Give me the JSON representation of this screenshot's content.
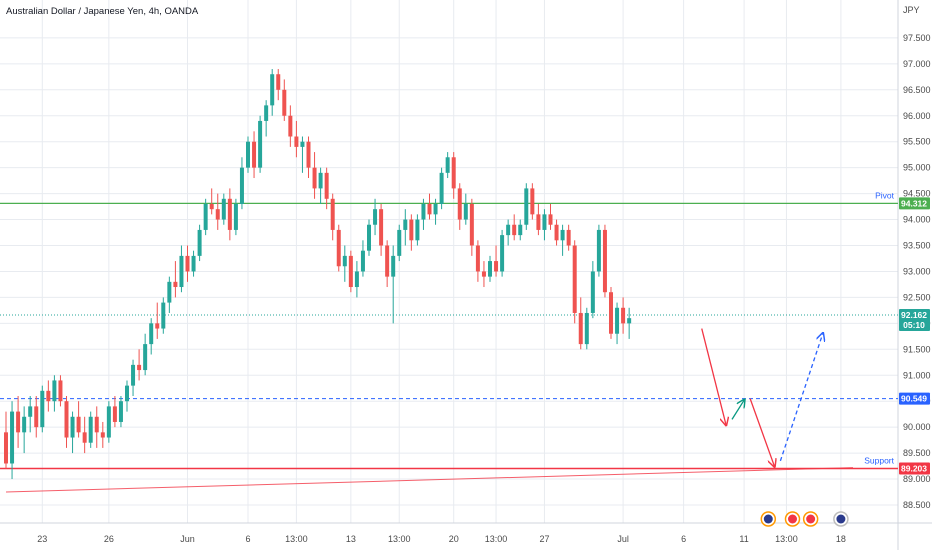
{
  "chart_data": {
    "type": "candlestick",
    "title": "Australian Dollar / Japanese Yen, 4h, OANDA",
    "currency": "JPY",
    "colors": {
      "up": "#26a69a",
      "down": "#ef5350",
      "pivot": "#4caf50",
      "support": "#f23645",
      "level": "#2962ff",
      "arrow_down": "#f23645",
      "arrow_up": "#089981",
      "grid": "#e8ebf0",
      "axis_text": "#4a4a4a"
    },
    "ylim": [
      88.2,
      98.2
    ],
    "y_ticks": [
      88.5,
      89.0,
      89.5,
      90.0,
      90.5,
      91.0,
      91.5,
      92.0,
      92.5,
      93.0,
      93.5,
      94.0,
      94.5,
      95.0,
      95.5,
      96.0,
      96.5,
      97.0,
      97.5
    ],
    "y_tick_labels": [
      "88.500",
      "89.000",
      "89.500",
      "90.000",
      "90.500",
      "91.000",
      "91.500",
      "92.000",
      "92.500",
      "93.000",
      "93.500",
      "94.000",
      "94.500",
      "95.000",
      "95.500",
      "96.000",
      "96.500",
      "97.000",
      "97.500"
    ],
    "x_ticks": [
      {
        "label": "23",
        "i": 6
      },
      {
        "label": "26",
        "i": 17
      },
      {
        "label": "Jun",
        "i": 30
      },
      {
        "label": "6",
        "i": 40
      },
      {
        "label": "13:00",
        "i": 48
      },
      {
        "label": "13",
        "i": 57
      },
      {
        "label": "13:00",
        "i": 65
      },
      {
        "label": "20",
        "i": 74
      },
      {
        "label": "13:00",
        "i": 81
      },
      {
        "label": "27",
        "i": 89
      },
      {
        "label": "Jul",
        "i": 102
      },
      {
        "label": "6",
        "i": 112
      },
      {
        "label": "11",
        "i": 122
      },
      {
        "label": "13:00",
        "i": 129
      },
      {
        "label": "18",
        "i": 138
      }
    ],
    "levels": {
      "pivot": {
        "label": "Pivot",
        "value": 94.312,
        "text": "94.312"
      },
      "support": {
        "label": "Support",
        "value": 89.203,
        "text": "89.203"
      },
      "target": {
        "value": 90.549,
        "text": "90.549"
      },
      "current": {
        "value": 92.162,
        "text": "92.162",
        "countdown": "05:10"
      }
    },
    "trendline": {
      "from": {
        "i": 0,
        "v": 88.75
      },
      "to": {
        "i": 140,
        "v": 89.22
      }
    },
    "projection": [
      {
        "from": {
          "i": 115,
          "v": 91.9
        },
        "to": {
          "i": 119,
          "v": 90.05
        },
        "style": "arrow_down"
      },
      {
        "from": {
          "i": 120,
          "v": 90.15
        },
        "to": {
          "i": 122,
          "v": 90.52
        },
        "style": "arrow_up"
      },
      {
        "from": {
          "i": 123,
          "v": 90.55
        },
        "to": {
          "i": 127,
          "v": 89.25
        },
        "style": "arrow_down"
      },
      {
        "from": {
          "i": 128,
          "v": 89.35
        },
        "to": {
          "i": 135,
          "v": 91.8
        },
        "style": "arrow_dashed"
      }
    ],
    "candles": [
      [
        89.9,
        90.3,
        89.2,
        89.3
      ],
      [
        89.3,
        90.5,
        89.0,
        90.3
      ],
      [
        90.3,
        90.6,
        89.6,
        89.9
      ],
      [
        89.9,
        90.4,
        89.5,
        90.2
      ],
      [
        90.2,
        90.6,
        89.9,
        90.4
      ],
      [
        90.4,
        90.6,
        89.8,
        90.0
      ],
      [
        90.0,
        90.8,
        89.9,
        90.7
      ],
      [
        90.7,
        90.9,
        90.3,
        90.5
      ],
      [
        90.5,
        91.0,
        90.3,
        90.9
      ],
      [
        90.9,
        91.0,
        90.4,
        90.5
      ],
      [
        90.5,
        90.6,
        89.6,
        89.8
      ],
      [
        89.8,
        90.3,
        89.5,
        90.2
      ],
      [
        90.2,
        90.5,
        89.8,
        89.9
      ],
      [
        89.9,
        90.2,
        89.5,
        89.7
      ],
      [
        89.7,
        90.3,
        89.6,
        90.2
      ],
      [
        90.2,
        90.4,
        89.6,
        89.9
      ],
      [
        89.9,
        90.1,
        89.6,
        89.8
      ],
      [
        89.8,
        90.5,
        89.7,
        90.4
      ],
      [
        90.4,
        90.6,
        90.0,
        90.1
      ],
      [
        90.1,
        90.6,
        90.0,
        90.5
      ],
      [
        90.5,
        90.9,
        90.3,
        90.8
      ],
      [
        90.8,
        91.3,
        90.6,
        91.2
      ],
      [
        91.2,
        91.5,
        90.9,
        91.1
      ],
      [
        91.1,
        91.8,
        91.0,
        91.6
      ],
      [
        91.6,
        92.1,
        91.4,
        92.0
      ],
      [
        92.0,
        92.4,
        91.7,
        91.9
      ],
      [
        91.9,
        92.5,
        91.8,
        92.4
      ],
      [
        92.4,
        92.9,
        92.2,
        92.8
      ],
      [
        92.8,
        93.2,
        92.5,
        92.7
      ],
      [
        92.7,
        93.5,
        92.6,
        93.3
      ],
      [
        93.3,
        93.5,
        92.8,
        93.0
      ],
      [
        93.0,
        93.4,
        92.9,
        93.3
      ],
      [
        93.3,
        93.9,
        93.2,
        93.8
      ],
      [
        93.8,
        94.4,
        93.7,
        94.3
      ],
      [
        94.3,
        94.6,
        94.1,
        94.2
      ],
      [
        94.2,
        94.5,
        93.8,
        94.0
      ],
      [
        94.0,
        94.5,
        93.9,
        94.4
      ],
      [
        94.4,
        94.6,
        93.6,
        93.8
      ],
      [
        93.8,
        94.4,
        93.7,
        94.3
      ],
      [
        94.3,
        95.2,
        94.2,
        95.0
      ],
      [
        95.0,
        95.6,
        94.9,
        95.5
      ],
      [
        95.5,
        95.7,
        94.8,
        95.0
      ],
      [
        95.0,
        96.0,
        94.9,
        95.9
      ],
      [
        95.9,
        96.3,
        95.6,
        96.2
      ],
      [
        96.2,
        96.9,
        96.0,
        96.8
      ],
      [
        96.8,
        96.9,
        96.3,
        96.5
      ],
      [
        96.5,
        96.7,
        95.9,
        96.0
      ],
      [
        96.0,
        96.2,
        95.4,
        95.6
      ],
      [
        95.6,
        95.9,
        95.2,
        95.4
      ],
      [
        95.4,
        95.6,
        94.9,
        95.5
      ],
      [
        95.5,
        95.6,
        94.8,
        95.0
      ],
      [
        95.0,
        95.3,
        94.4,
        94.6
      ],
      [
        94.6,
        95.0,
        94.3,
        94.9
      ],
      [
        94.9,
        95.0,
        94.2,
        94.4
      ],
      [
        94.4,
        94.5,
        93.6,
        93.8
      ],
      [
        93.8,
        93.9,
        93.0,
        93.1
      ],
      [
        93.1,
        93.5,
        92.8,
        93.3
      ],
      [
        93.3,
        93.4,
        92.6,
        92.7
      ],
      [
        92.7,
        93.2,
        92.5,
        93.0
      ],
      [
        93.0,
        93.6,
        92.9,
        93.4
      ],
      [
        93.4,
        94.0,
        93.3,
        93.9
      ],
      [
        93.9,
        94.4,
        93.7,
        94.2
      ],
      [
        94.2,
        94.3,
        93.3,
        93.5
      ],
      [
        93.5,
        93.6,
        92.7,
        92.9
      ],
      [
        92.9,
        93.5,
        92.0,
        93.3
      ],
      [
        93.3,
        93.9,
        93.2,
        93.8
      ],
      [
        93.8,
        94.2,
        93.5,
        94.0
      ],
      [
        94.0,
        94.1,
        93.4,
        93.6
      ],
      [
        93.6,
        94.1,
        93.5,
        94.0
      ],
      [
        94.0,
        94.4,
        93.8,
        94.3
      ],
      [
        94.3,
        94.5,
        94.0,
        94.1
      ],
      [
        94.1,
        94.4,
        93.9,
        94.3
      ],
      [
        94.3,
        95.0,
        94.2,
        94.9
      ],
      [
        94.9,
        95.3,
        94.8,
        95.2
      ],
      [
        95.2,
        95.3,
        94.4,
        94.6
      ],
      [
        94.6,
        94.7,
        93.8,
        94.0
      ],
      [
        94.0,
        94.5,
        93.9,
        94.3
      ],
      [
        94.3,
        94.4,
        93.3,
        93.5
      ],
      [
        93.5,
        93.6,
        92.8,
        93.0
      ],
      [
        93.0,
        93.2,
        92.7,
        92.9
      ],
      [
        92.9,
        93.3,
        92.8,
        93.2
      ],
      [
        93.2,
        93.5,
        92.9,
        93.0
      ],
      [
        93.0,
        93.8,
        92.9,
        93.7
      ],
      [
        93.7,
        94.0,
        93.5,
        93.9
      ],
      [
        93.9,
        94.1,
        93.6,
        93.7
      ],
      [
        93.7,
        94.0,
        93.6,
        93.9
      ],
      [
        93.9,
        94.7,
        93.8,
        94.6
      ],
      [
        94.6,
        94.7,
        94.0,
        94.1
      ],
      [
        94.1,
        94.3,
        93.7,
        93.8
      ],
      [
        93.8,
        94.2,
        93.6,
        94.1
      ],
      [
        94.1,
        94.3,
        93.8,
        93.9
      ],
      [
        93.9,
        94.0,
        93.5,
        93.6
      ],
      [
        93.6,
        93.9,
        93.3,
        93.8
      ],
      [
        93.8,
        93.9,
        93.4,
        93.5
      ],
      [
        93.5,
        93.6,
        92.0,
        92.2
      ],
      [
        92.2,
        92.5,
        91.5,
        91.6
      ],
      [
        91.6,
        92.3,
        91.5,
        92.2
      ],
      [
        92.2,
        93.2,
        92.1,
        93.0
      ],
      [
        93.0,
        93.9,
        92.9,
        93.8
      ],
      [
        93.8,
        93.9,
        92.5,
        92.6
      ],
      [
        92.6,
        92.7,
        91.7,
        91.8
      ],
      [
        91.8,
        92.4,
        91.6,
        92.3
      ],
      [
        92.3,
        92.5,
        91.8,
        92.0
      ],
      [
        92.0,
        92.3,
        91.7,
        92.1
      ]
    ]
  },
  "event_icons": [
    {
      "name": "au-flag-icon",
      "i": 126,
      "color": "#2a3a8c",
      "ring": "#ff9800"
    },
    {
      "name": "event-dot-icon",
      "i": 130,
      "color": "#f23645",
      "ring": "#ff9800"
    },
    {
      "name": "event-dot-icon-2",
      "i": 133,
      "color": "#f23645",
      "ring": "#ff9800"
    },
    {
      "name": "au-flag-icon-2",
      "i": 138,
      "color": "#2a3a8c",
      "ring": "#bdbdbd"
    }
  ]
}
